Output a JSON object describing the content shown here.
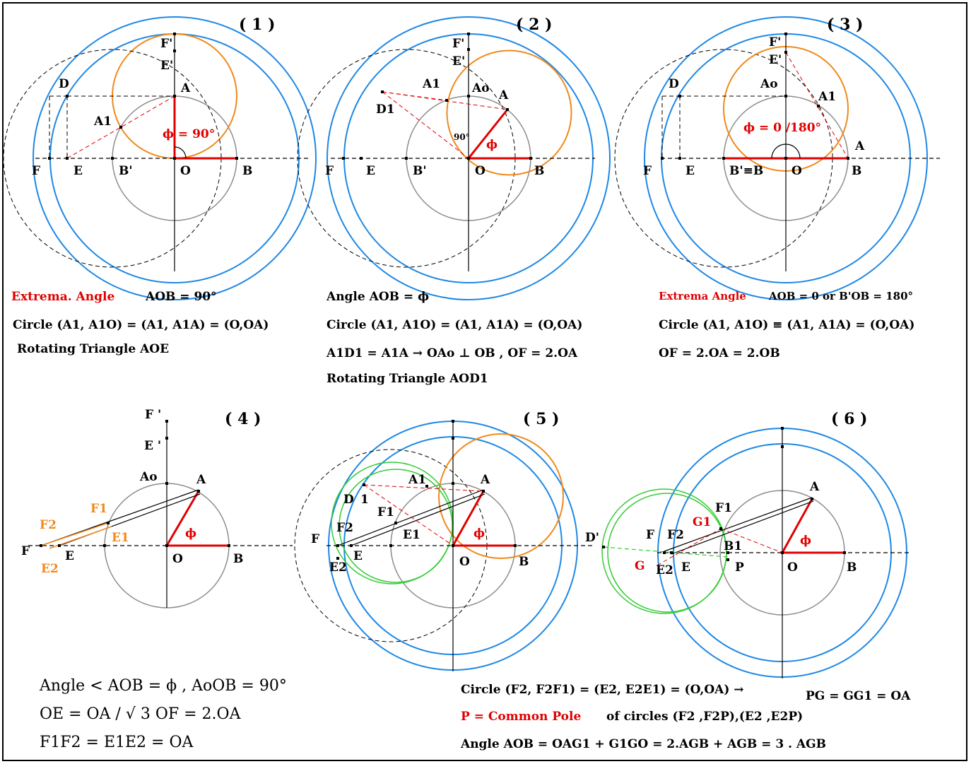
{
  "colors": {
    "blue": "#1e88e5",
    "orange": "#f08a1c",
    "red": "#e00000",
    "gray": "#8c8c8c",
    "green": "#33cc33",
    "black": "#000000"
  },
  "panels": {
    "p1": {
      "title": "( 1 )"
    },
    "p2": {
      "title": "( 2 )"
    },
    "p3": {
      "title": "( 3 )"
    },
    "p4": {
      "title": "( 4 )"
    },
    "p5": {
      "title": "( 5 )"
    },
    "p6": {
      "title": "( 6 )"
    }
  },
  "labels": {
    "p1": {
      "F": "F",
      "E": "E",
      "B_prime": "B'",
      "O": "O",
      "B": "B",
      "A": "A",
      "D": "D",
      "A1": "A1",
      "F_prime": "F'",
      "E_prime": "E'",
      "phi": "ϕ = 90°"
    },
    "p2": {
      "F": "F",
      "E": "E",
      "B_prime": "B'",
      "O": "O",
      "B": "B",
      "A": "A",
      "D1": "D1",
      "A1": "A1",
      "Ao": "Ao",
      "F_prime": "F'",
      "E_prime": "E'",
      "phi": "ϕ",
      "angle90": "90°"
    },
    "p3": {
      "F": "F",
      "E": "E",
      "B_prime_B": "B'≡B",
      "O": "O",
      "B": "B",
      "A": "A",
      "D": "D",
      "A1": "A1",
      "Ao": "Ao",
      "F_prime": "F'",
      "E_prime": "E'",
      "phi": "ϕ = 0 /180°"
    },
    "p4": {
      "F": "F",
      "E": "E",
      "O": "O",
      "B": "B",
      "A": "A",
      "Ao": "Ao",
      "F_prime": "F '",
      "E_prime": "E '",
      "F1": "F1",
      "F2": "F2",
      "E1": "E1",
      "E2": "E2",
      "phi": "ϕ"
    },
    "p5": {
      "F": "F",
      "E": "E",
      "O": "O",
      "B": "B",
      "A": "A",
      "D": "D",
      "one": "1",
      "A1": "A1",
      "F1": "F1",
      "F2": "F2",
      "E1": "E1",
      "E2": "E2",
      "phi": "ϕ"
    },
    "p6": {
      "F": "F",
      "E": "E",
      "O": "O",
      "B": "B",
      "A": "A",
      "D_prime": "D'",
      "F1": "F1",
      "F2": "F2",
      "E2": "E2",
      "G": "G",
      "G1": "G1",
      "B1": "B1",
      "P": "P",
      "phi": "ϕ"
    }
  },
  "captions": {
    "c1_red": "Extrema. Angle",
    "c1_a": "AOB = 90°",
    "c1_b": "Circle (A1, A1O) = (A1, A1A) = (O,OA)",
    "c1_c": "Rotating Triangle   AOE",
    "c2_a": "Angle   AOB = ϕ",
    "c2_b": "Circle (A1, A1O) = (A1, A1A) = (O,OA)",
    "c2_c": "A1D1 = A1A → OAo  ⊥  OB  , OF = 2.OA",
    "c2_d": "Rotating Triangle   AOD1",
    "c3_red": "Extrema Angle",
    "c3_a": "AOB = 0  or B'OB = 180°",
    "c3_b": "Circle (A1, A1O) ≡ (A1, A1A) = (O,OA)",
    "c3_c": "OF = 2.OA = 2.OB",
    "c4_a": "Angle < AOB = ϕ , AoOB = 90°",
    "c4_b": "OE = OA  / √ 3     OF = 2.OA",
    "c4_c": "F1F2 = E1E2 = OA",
    "c6_a": "Circle (F2, F2F1) = (E2, E2E1) = (O,OA) →",
    "c6_a2": "PG = GG1 = OA",
    "c6_red": "P = Common Pole",
    "c6_b": "of circles  (F2 ,F2P),(E2 ,E2P)",
    "c6_c": "Angle   AOB =  OAG1 + G1GO = 2.AGB + AGB = 3 . AGB"
  }
}
